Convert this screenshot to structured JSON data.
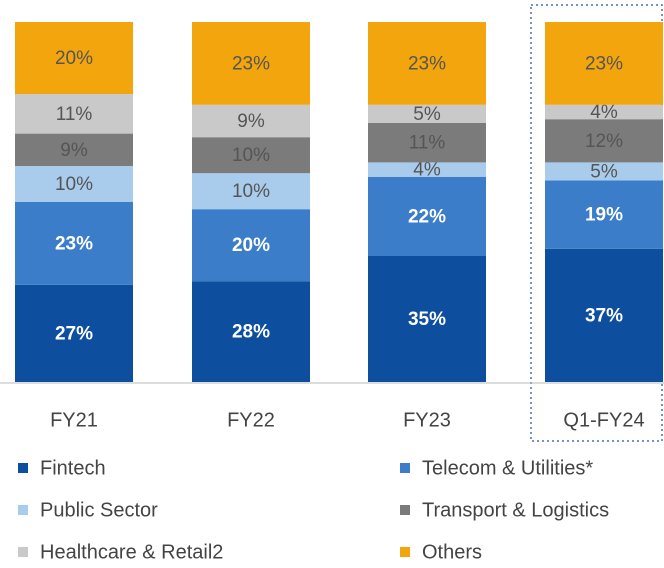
{
  "chart_data": {
    "type": "stacked_bar",
    "categories": [
      "FY21",
      "FY22",
      "FY23",
      "Q1-FY24"
    ],
    "ylim": [
      0,
      100
    ],
    "series": [
      {
        "name": "Fintech",
        "color": "#0d4f9e",
        "values": [
          27,
          28,
          35,
          37
        ],
        "value_labels": [
          "27%",
          "28%",
          "35%",
          "37%"
        ]
      },
      {
        "name": "Telecom & Utilities*",
        "color": "#3b7dc9",
        "values": [
          23,
          20,
          22,
          19
        ],
        "value_labels": [
          "23%",
          "20%",
          "22%",
          "19%"
        ]
      },
      {
        "name": "Public Sector",
        "color": "#a9cbec",
        "values": [
          10,
          10,
          4,
          5
        ],
        "value_labels": [
          "10%",
          "10%",
          "4%",
          "5%"
        ]
      },
      {
        "name": "Transport & Logistics",
        "color": "#7b7b7b",
        "values": [
          9,
          10,
          11,
          12
        ],
        "value_labels": [
          "9%",
          "10%",
          "11%",
          "12%"
        ]
      },
      {
        "name": "Healthcare & Retail2",
        "color": "#c9c9c9",
        "values": [
          11,
          9,
          5,
          4
        ],
        "value_labels": [
          "11%",
          "9%",
          "5%",
          "4%"
        ]
      },
      {
        "name": "Others",
        "color": "#f2a50c",
        "values": [
          20,
          23,
          23,
          23
        ],
        "value_labels": [
          "20%",
          "23%",
          "23%",
          "23%"
        ]
      }
    ]
  }
}
